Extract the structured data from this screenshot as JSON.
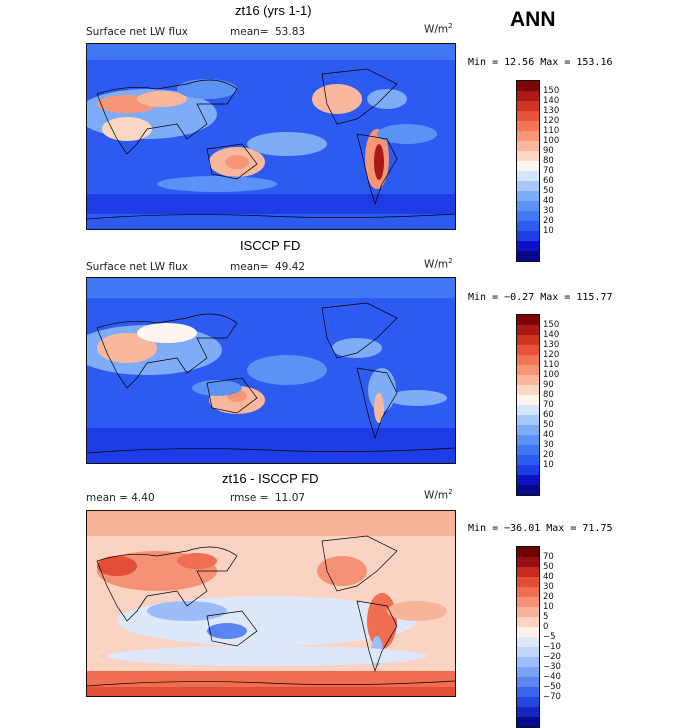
{
  "header": {
    "season": "ANN"
  },
  "colors": {
    "abs_scale": [
      "#08088a",
      "#1010c8",
      "#1e3ce6",
      "#2d5af0",
      "#3f78f2",
      "#5c92f5",
      "#7eacf7",
      "#a8c8fa",
      "#d5e5fd",
      "#fdf6ee",
      "#fbd7c4",
      "#f9b89d",
      "#f69676",
      "#f27555",
      "#e9523a",
      "#d03524",
      "#aa1a14",
      "#7d0608"
    ],
    "diff_scale": [
      "#08088a",
      "#1626c0",
      "#2544e0",
      "#3a63ee",
      "#5a85f3",
      "#7aa3f6",
      "#9cbdf9",
      "#c0d6fb",
      "#dde8fd",
      "#fdf1ea",
      "#fbd3c2",
      "#f8b39b",
      "#f59174",
      "#f06e52",
      "#e34c36",
      "#c52a1f",
      "#951010",
      "#6d0404"
    ]
  },
  "panels": [
    {
      "title": "zt16 (yrs 1-1)",
      "left_label": "Surface net LW flux",
      "stat_label": "mean=",
      "stat_value": "53.83",
      "units": "W/m",
      "units_exp": "2",
      "range_text": "Min =  12.56 Max = 153.16",
      "scale": "abs",
      "ticks": [
        "150",
        "140",
        "130",
        "120",
        "110",
        "100",
        "90",
        "80",
        "70",
        "60",
        "50",
        "40",
        "30",
        "20",
        "10"
      ]
    },
    {
      "title": "ISCCP FD",
      "left_label": "Surface net LW flux",
      "stat_label": "mean=",
      "stat_value": "49.42",
      "units": "W/m",
      "units_exp": "2",
      "range_text": "Min =  −0.27 Max = 115.77",
      "scale": "abs",
      "ticks": [
        "150",
        "140",
        "130",
        "120",
        "110",
        "100",
        "90",
        "80",
        "70",
        "60",
        "50",
        "40",
        "30",
        "20",
        "10"
      ]
    },
    {
      "title": "zt16 - ISCCP FD",
      "left_label": "mean =    4.40",
      "stat_label": "rmse =",
      "stat_value": "11.07",
      "units": "W/m",
      "units_exp": "2",
      "range_text": "Min = −36.01 Max =  71.75",
      "scale": "diff",
      "ticks": [
        "70",
        "50",
        "40",
        "30",
        "20",
        "10",
        "5",
        "0",
        "−5",
        "−10",
        "−20",
        "−30",
        "−40",
        "−50",
        "−70"
      ]
    }
  ]
}
